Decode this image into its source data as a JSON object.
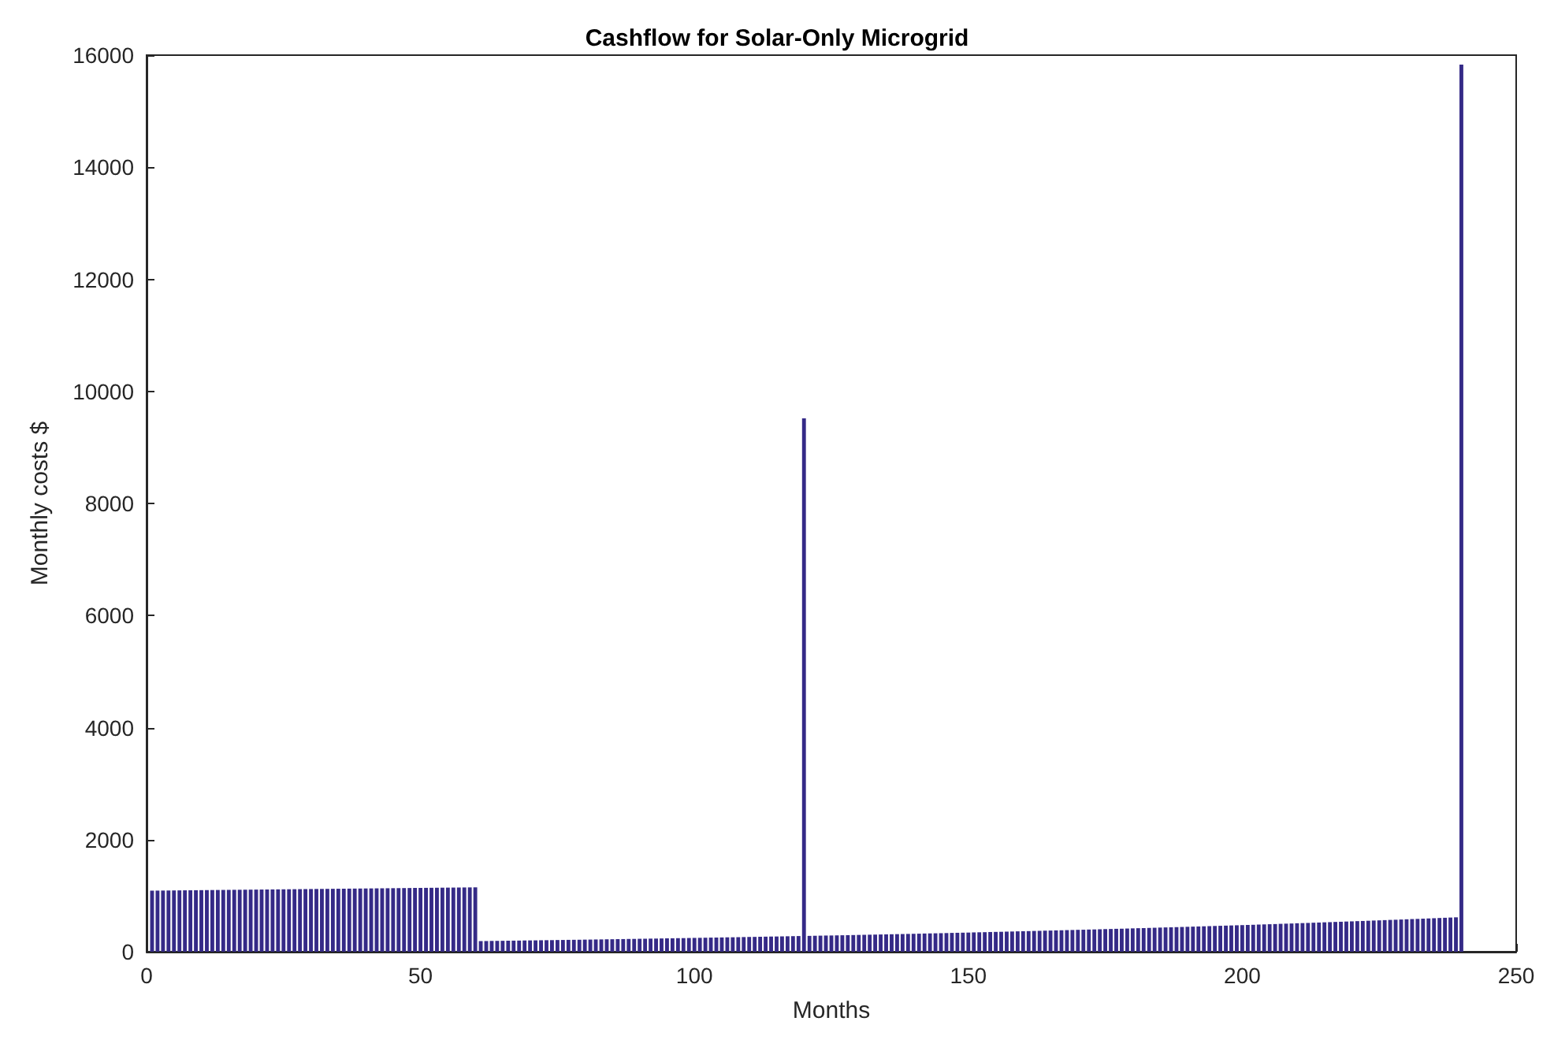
{
  "chart_data": {
    "type": "bar",
    "title": "Cashflow for Solar-Only Microgrid",
    "xlabel": "Months",
    "ylabel": "Monthly costs $",
    "x": [
      1,
      2,
      3,
      4,
      5,
      6,
      7,
      8,
      9,
      10,
      11,
      12,
      13,
      14,
      15,
      16,
      17,
      18,
      19,
      20,
      21,
      22,
      23,
      24,
      25,
      26,
      27,
      28,
      29,
      30,
      31,
      32,
      33,
      34,
      35,
      36,
      37,
      38,
      39,
      40,
      41,
      42,
      43,
      44,
      45,
      46,
      47,
      48,
      49,
      50,
      51,
      52,
      53,
      54,
      55,
      56,
      57,
      58,
      59,
      60,
      61,
      62,
      63,
      64,
      65,
      66,
      67,
      68,
      69,
      70,
      71,
      72,
      73,
      74,
      75,
      76,
      77,
      78,
      79,
      80,
      81,
      82,
      83,
      84,
      85,
      86,
      87,
      88,
      89,
      90,
      91,
      92,
      93,
      94,
      95,
      96,
      97,
      98,
      99,
      100,
      101,
      102,
      103,
      104,
      105,
      106,
      107,
      108,
      109,
      110,
      111,
      112,
      113,
      114,
      115,
      116,
      117,
      118,
      119,
      120,
      121,
      122,
      123,
      124,
      125,
      126,
      127,
      128,
      129,
      130,
      131,
      132,
      133,
      134,
      135,
      136,
      137,
      138,
      139,
      140,
      141,
      142,
      143,
      144,
      145,
      146,
      147,
      148,
      149,
      150,
      151,
      152,
      153,
      154,
      155,
      156,
      157,
      158,
      159,
      160,
      161,
      162,
      163,
      164,
      165,
      166,
      167,
      168,
      169,
      170,
      171,
      172,
      173,
      174,
      175,
      176,
      177,
      178,
      179,
      180,
      181,
      182,
      183,
      184,
      185,
      186,
      187,
      188,
      189,
      190,
      191,
      192,
      193,
      194,
      195,
      196,
      197,
      198,
      199,
      200,
      201,
      202,
      203,
      204,
      205,
      206,
      207,
      208,
      209,
      210,
      211,
      212,
      213,
      214,
      215,
      216,
      217,
      218,
      219,
      220,
      221,
      222,
      223,
      224,
      225,
      226,
      227,
      228,
      229,
      230,
      231,
      232,
      233,
      234,
      235,
      236,
      237,
      238,
      239,
      240
    ],
    "values": [
      1090,
      1091,
      1092,
      1093,
      1094,
      1095,
      1096,
      1097,
      1098,
      1099,
      1100,
      1101,
      1102,
      1103,
      1104,
      1105,
      1106,
      1107,
      1108,
      1109,
      1110,
      1111,
      1112,
      1113,
      1114,
      1115,
      1116,
      1117,
      1118,
      1119,
      1120,
      1121,
      1122,
      1123,
      1124,
      1125,
      1126,
      1127,
      1128,
      1129,
      1130,
      1131,
      1132,
      1133,
      1134,
      1135,
      1136,
      1137,
      1138,
      1139,
      1140,
      1141,
      1142,
      1143,
      1144,
      1145,
      1146,
      1147,
      1148,
      1149,
      190,
      191,
      193,
      194,
      195,
      197,
      198,
      199,
      201,
      202,
      203,
      205,
      206,
      207,
      209,
      210,
      212,
      213,
      214,
      216,
      217,
      219,
      220,
      222,
      223,
      225,
      226,
      228,
      229,
      231,
      232,
      234,
      235,
      237,
      239,
      240,
      242,
      243,
      245,
      247,
      248,
      250,
      252,
      253,
      255,
      257,
      258,
      260,
      262,
      264,
      265,
      267,
      269,
      271,
      272,
      274,
      276,
      278,
      280,
      9520,
      283,
      285,
      287,
      289,
      290,
      292,
      294,
      296,
      298,
      300,
      302,
      304,
      306,
      308,
      310,
      312,
      314,
      316,
      318,
      320,
      322,
      325,
      327,
      329,
      331,
      333,
      336,
      338,
      340,
      342,
      345,
      347,
      349,
      352,
      354,
      356,
      359,
      361,
      364,
      366,
      368,
      371,
      373,
      376,
      378,
      381,
      383,
      386,
      388,
      391,
      393,
      396,
      398,
      401,
      404,
      406,
      409,
      411,
      414,
      417,
      420,
      422,
      425,
      428,
      431,
      434,
      436,
      439,
      442,
      445,
      448,
      451,
      454,
      457,
      460,
      463,
      466,
      469,
      472,
      475,
      478,
      481,
      485,
      488,
      491,
      494,
      498,
      501,
      504,
      508,
      511,
      514,
      518,
      521,
      525,
      528,
      532,
      535,
      539,
      542,
      546,
      549,
      553,
      557,
      560,
      564,
      568,
      571,
      575,
      579,
      583,
      586,
      590,
      594,
      598,
      602,
      606,
      610,
      614,
      15830
    ],
    "color": "#352a87",
    "xlim": [
      0,
      250
    ],
    "xticks": [
      0,
      50,
      100,
      150,
      200,
      250
    ],
    "ylim": [
      0,
      16000
    ],
    "yticks": [
      0,
      2000,
      4000,
      6000,
      8000,
      10000,
      12000,
      14000,
      16000
    ],
    "grid": false
  }
}
